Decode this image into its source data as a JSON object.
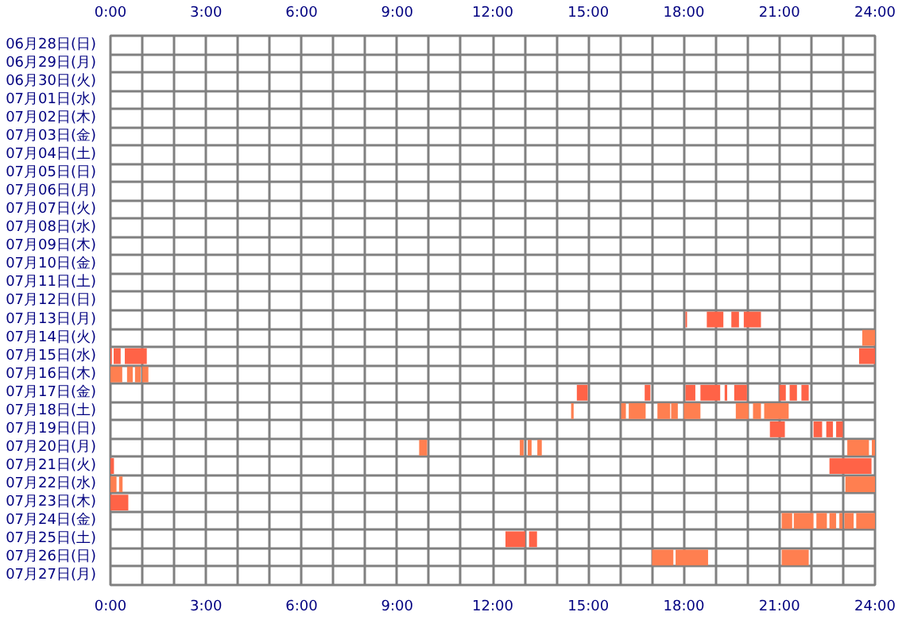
{
  "chart_data": {
    "type": "bar",
    "orientation": "horizontal",
    "grid": true,
    "categories": [
      "06月28日(日)",
      "06月29日(月)",
      "06月30日(火)",
      "07月01日(水)",
      "07月02日(木)",
      "07月03日(金)",
      "07月04日(土)",
      "07月05日(日)",
      "07月06日(月)",
      "07月07日(火)",
      "07月08日(水)",
      "07月09日(木)",
      "07月10日(金)",
      "07月11日(土)",
      "07月12日(日)",
      "07月13日(月)",
      "07月14日(火)",
      "07月15日(水)",
      "07月16日(木)",
      "07月17日(金)",
      "07月18日(土)",
      "07月19日(日)",
      "07月20日(月)",
      "07月21日(火)",
      "07月22日(水)",
      "07月23日(木)",
      "07月24日(金)",
      "07月25日(土)",
      "07月26日(日)",
      "07月27日(月)"
    ],
    "xlim": [
      0,
      24
    ],
    "xticks": [
      {
        "value": 0,
        "label": "0:00"
      },
      {
        "value": 1,
        "label": null
      },
      {
        "value": 2,
        "label": null
      },
      {
        "value": 3,
        "label": "3:00"
      },
      {
        "value": 4,
        "label": null
      },
      {
        "value": 5,
        "label": null
      },
      {
        "value": 6,
        "label": "6:00"
      },
      {
        "value": 7,
        "label": null
      },
      {
        "value": 8,
        "label": null
      },
      {
        "value": 9,
        "label": "9:00"
      },
      {
        "value": 10,
        "label": null
      },
      {
        "value": 11,
        "label": null
      },
      {
        "value": 12,
        "label": "12:00"
      },
      {
        "value": 13,
        "label": null
      },
      {
        "value": 14,
        "label": null
      },
      {
        "value": 15,
        "label": "15:00"
      },
      {
        "value": 16,
        "label": null
      },
      {
        "value": 17,
        "label": null
      },
      {
        "value": 18,
        "label": "18:00"
      },
      {
        "value": 19,
        "label": null
      },
      {
        "value": 20,
        "label": null
      },
      {
        "value": 21,
        "label": "21:00"
      },
      {
        "value": 22,
        "label": null
      },
      {
        "value": 23,
        "label": null
      },
      {
        "value": 24,
        "label": "24:00"
      }
    ],
    "x2lim": [
      0,
      24
    ],
    "x2ticks": [
      {
        "value": 0,
        "label": "0:00"
      },
      {
        "value": 3,
        "label": "3:00"
      },
      {
        "value": 6,
        "label": "6:00"
      },
      {
        "value": 9,
        "label": "9:00"
      },
      {
        "value": 12,
        "label": "12:00"
      },
      {
        "value": 15,
        "label": "15:00"
      },
      {
        "value": 18,
        "label": "18:00"
      },
      {
        "value": 21,
        "label": "21:00"
      },
      {
        "value": 24,
        "label": "24:00"
      }
    ],
    "series": [
      {
        "base": [
          null,
          null,
          null,
          null,
          null,
          null,
          null,
          null,
          null,
          null,
          null,
          null,
          null,
          null,
          null,
          18.05,
          23.6,
          0,
          0,
          14.64,
          14.46,
          20.7,
          9.69,
          0,
          0,
          0,
          21.07,
          12.4,
          17.0,
          null
        ],
        "values": [
          null,
          null,
          null,
          null,
          null,
          null,
          null,
          null,
          null,
          null,
          null,
          null,
          null,
          null,
          null,
          0.05,
          0.4,
          0.04,
          0.37,
          0.34,
          0.08,
          0.47,
          0.25,
          0.11,
          0.19,
          0.56,
          0.33,
          0.62,
          0.67,
          null
        ],
        "colors": [
          null,
          null,
          null,
          null,
          null,
          null,
          null,
          null,
          null,
          null,
          null,
          null,
          null,
          null,
          null,
          "#ff6347",
          "#ff7f50",
          "#ff6347",
          "#ff7f50",
          "#ff6347",
          "#ff7f50",
          "#ff6347",
          "#ff7f50",
          "#ff6347",
          "#ff7f50",
          "#ff6347",
          "#ff7f50",
          "#ff6347",
          "#ff7f50",
          null
        ]
      },
      {
        "base": [
          null,
          null,
          null,
          null,
          null,
          null,
          null,
          null,
          null,
          null,
          null,
          null,
          null,
          null,
          null,
          18.72,
          null,
          0.1,
          0.52,
          16.77,
          16.03,
          22.07,
          12.85,
          22.57,
          0.27,
          null,
          21.45,
          13.14,
          17.74,
          null
        ],
        "values": [
          null,
          null,
          null,
          null,
          null,
          null,
          null,
          null,
          null,
          null,
          null,
          null,
          null,
          null,
          null,
          0.52,
          null,
          0.22,
          0.18,
          0.18,
          0.15,
          0.27,
          0.12,
          1.32,
          0.11,
          null,
          0.62,
          0.25,
          1.02,
          null
        ],
        "colors": [
          null,
          null,
          null,
          null,
          null,
          null,
          null,
          null,
          null,
          null,
          null,
          null,
          null,
          null,
          null,
          "#ff6347",
          null,
          "#ff6347",
          "#ff7f50",
          "#ff6347",
          "#ff7f50",
          "#ff6347",
          "#ff7f50",
          "#ff6347",
          "#ff7f50",
          null,
          "#ff7f50",
          "#ff6347",
          "#ff7f50",
          null
        ]
      },
      {
        "base": [
          null,
          null,
          null,
          null,
          null,
          null,
          null,
          null,
          null,
          null,
          null,
          null,
          null,
          null,
          null,
          19.49,
          null,
          0.45,
          0.77,
          18.05,
          16.27,
          22.47,
          13.1,
          null,
          23.07,
          null,
          22.16,
          null,
          21.07,
          null
        ],
        "values": [
          null,
          null,
          null,
          null,
          null,
          null,
          null,
          null,
          null,
          null,
          null,
          null,
          null,
          null,
          null,
          0.24,
          null,
          0.69,
          0.18,
          0.31,
          0.53,
          0.21,
          0.12,
          null,
          0.93,
          null,
          0.33,
          null,
          0.85,
          null
        ],
        "colors": [
          null,
          null,
          null,
          null,
          null,
          null,
          null,
          null,
          null,
          null,
          null,
          null,
          null,
          null,
          null,
          "#ff6347",
          null,
          "#ff6347",
          "#ff7f50",
          "#ff6347",
          "#ff7f50",
          "#ff6347",
          "#ff7f50",
          null,
          "#ff7f50",
          null,
          "#ff7f50",
          null,
          "#ff7f50",
          null
        ]
      },
      {
        "base": [
          null,
          null,
          null,
          null,
          null,
          null,
          null,
          null,
          null,
          null,
          null,
          null,
          null,
          null,
          null,
          19.88,
          null,
          23.5,
          1.0,
          18.52,
          17.17,
          22.78,
          13.4,
          null,
          null,
          null,
          22.57,
          null,
          null,
          null
        ],
        "values": [
          null,
          null,
          null,
          null,
          null,
          null,
          null,
          null,
          null,
          null,
          null,
          null,
          null,
          null,
          null,
          0.54,
          null,
          0.5,
          0.19,
          0.62,
          0.4,
          0.21,
          0.14,
          null,
          null,
          null,
          0.21,
          null,
          null,
          null
        ],
        "colors": [
          null,
          null,
          null,
          null,
          null,
          null,
          null,
          null,
          null,
          null,
          null,
          null,
          null,
          null,
          null,
          "#ff6347",
          null,
          "#ff6347",
          "#ff7f50",
          "#ff6347",
          "#ff7f50",
          "#ff6347",
          "#ff7f50",
          null,
          null,
          null,
          "#ff7f50",
          null,
          null,
          null
        ]
      },
      {
        "base": [
          null,
          null,
          null,
          null,
          null,
          null,
          null,
          null,
          null,
          null,
          null,
          null,
          null,
          null,
          null,
          null,
          null,
          null,
          null,
          19.28,
          17.6,
          null,
          23.13,
          null,
          null,
          null,
          22.88,
          null,
          null,
          null
        ],
        "values": [
          null,
          null,
          null,
          null,
          null,
          null,
          null,
          null,
          null,
          null,
          null,
          null,
          null,
          null,
          null,
          null,
          null,
          null,
          null,
          0.08,
          0.21,
          null,
          0.68,
          null,
          null,
          null,
          0.1,
          null,
          null,
          null
        ],
        "colors": [
          null,
          null,
          null,
          null,
          null,
          null,
          null,
          null,
          null,
          null,
          null,
          null,
          null,
          null,
          null,
          null,
          null,
          null,
          null,
          "#ff6347",
          "#ff7f50",
          null,
          "#ff7f50",
          null,
          null,
          null,
          "#ff7f50",
          null,
          null,
          null
        ]
      },
      {
        "base": [
          null,
          null,
          null,
          null,
          null,
          null,
          null,
          null,
          null,
          null,
          null,
          null,
          null,
          null,
          null,
          null,
          null,
          null,
          null,
          19.58,
          18.0,
          null,
          23.9,
          null,
          null,
          null,
          23.04,
          null,
          null,
          null
        ],
        "values": [
          null,
          null,
          null,
          null,
          null,
          null,
          null,
          null,
          null,
          null,
          null,
          null,
          null,
          null,
          null,
          null,
          null,
          null,
          null,
          0.4,
          0.52,
          null,
          0.1,
          null,
          null,
          null,
          0.29,
          null,
          null,
          null
        ],
        "colors": [
          null,
          null,
          null,
          null,
          null,
          null,
          null,
          null,
          null,
          null,
          null,
          null,
          null,
          null,
          null,
          null,
          null,
          null,
          null,
          "#ff6347",
          "#ff7f50",
          null,
          "#ff7f50",
          null,
          null,
          null,
          "#ff7f50",
          null,
          null,
          null
        ]
      },
      {
        "base": [
          null,
          null,
          null,
          null,
          null,
          null,
          null,
          null,
          null,
          null,
          null,
          null,
          null,
          null,
          null,
          null,
          null,
          null,
          null,
          21.0,
          19.63,
          null,
          null,
          null,
          null,
          null,
          23.41,
          null,
          null,
          null
        ],
        "values": [
          null,
          null,
          null,
          null,
          null,
          null,
          null,
          null,
          null,
          null,
          null,
          null,
          null,
          null,
          null,
          null,
          null,
          null,
          null,
          0.2,
          0.4,
          null,
          null,
          null,
          null,
          null,
          0.59,
          null,
          null,
          null
        ],
        "colors": [
          null,
          null,
          null,
          null,
          null,
          null,
          null,
          null,
          null,
          null,
          null,
          null,
          null,
          null,
          null,
          null,
          null,
          null,
          null,
          "#ff6347",
          "#ff7f50",
          null,
          null,
          null,
          null,
          null,
          "#ff7f50",
          null,
          null,
          null
        ]
      },
      {
        "base": [
          null,
          null,
          null,
          null,
          null,
          null,
          null,
          null,
          null,
          null,
          null,
          null,
          null,
          null,
          null,
          null,
          null,
          null,
          null,
          21.32,
          20.17,
          null,
          null,
          null,
          null,
          null,
          null,
          null,
          null,
          null
        ],
        "values": [
          null,
          null,
          null,
          null,
          null,
          null,
          null,
          null,
          null,
          null,
          null,
          null,
          null,
          null,
          null,
          null,
          null,
          null,
          null,
          0.23,
          0.25,
          null,
          null,
          null,
          null,
          null,
          null,
          null,
          null,
          null
        ],
        "colors": [
          null,
          null,
          null,
          null,
          null,
          null,
          null,
          null,
          null,
          null,
          null,
          null,
          null,
          null,
          null,
          null,
          null,
          null,
          null,
          "#ff6347",
          "#ff7f50",
          null,
          null,
          null,
          null,
          null,
          null,
          null,
          null,
          null
        ]
      },
      {
        "base": [
          null,
          null,
          null,
          null,
          null,
          null,
          null,
          null,
          null,
          null,
          null,
          null,
          null,
          null,
          null,
          null,
          null,
          null,
          null,
          21.69,
          20.52,
          null,
          null,
          null,
          null,
          null,
          null,
          null,
          null,
          null
        ],
        "values": [
          null,
          null,
          null,
          null,
          null,
          null,
          null,
          null,
          null,
          null,
          null,
          null,
          null,
          null,
          null,
          null,
          null,
          null,
          null,
          0.23,
          0.77,
          null,
          null,
          null,
          null,
          null,
          null,
          null,
          null,
          null
        ],
        "colors": [
          null,
          null,
          null,
          null,
          null,
          null,
          null,
          null,
          null,
          null,
          null,
          null,
          null,
          null,
          null,
          null,
          null,
          null,
          null,
          "#ff6347",
          "#ff7f50",
          null,
          null,
          null,
          null,
          null,
          null,
          null,
          null,
          null
        ]
      }
    ]
  }
}
